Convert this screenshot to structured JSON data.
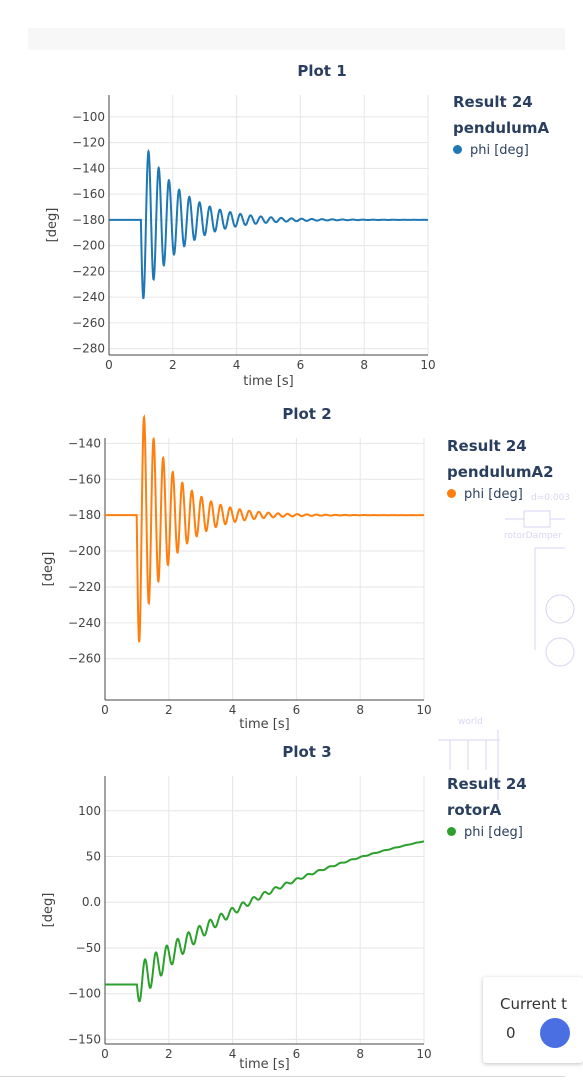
{
  "chart_data": [
    {
      "type": "line",
      "title": "Plot 1",
      "xlabel": "time [s]",
      "ylabel": "[deg]",
      "xlim": [
        0,
        10
      ],
      "ylim": [
        -285,
        -83
      ],
      "x_ticks": [
        "0",
        "2",
        "4",
        "6",
        "8",
        "10"
      ],
      "y_ticks": [
        "−100",
        "−120",
        "−140",
        "−160",
        "−180",
        "−200",
        "−220",
        "−240",
        "−260",
        "−280"
      ],
      "y_tick_values": [
        -100,
        -120,
        -140,
        -160,
        -180,
        -200,
        -220,
        -240,
        -260,
        -280
      ],
      "series": [
        {
          "name": "phi [deg]",
          "color": "#1f77b4",
          "model": {
            "t0": 1.0,
            "base": -180,
            "amp": 65,
            "decay": 0.85,
            "period": 0.32,
            "sign": -1,
            "drift": false
          }
        }
      ],
      "legend": {
        "result": "Result 24",
        "model": "pendulumA",
        "entry": "phi [deg]"
      }
    },
    {
      "type": "line",
      "title": "Plot 2",
      "xlabel": "time [s]",
      "ylabel": "[deg]",
      "xlim": [
        0,
        10
      ],
      "ylim": [
        -283,
        -137
      ],
      "x_ticks": [
        "0",
        "2",
        "4",
        "6",
        "8",
        "10"
      ],
      "y_ticks": [
        "−140",
        "−160",
        "−180",
        "−200",
        "−220",
        "−240",
        "−260"
      ],
      "y_tick_values": [
        -140,
        -160,
        -180,
        -200,
        -220,
        -240,
        -260
      ],
      "series": [
        {
          "name": "phi [deg]",
          "color": "#ff7f0e",
          "model": {
            "t0": 1.0,
            "base": -180,
            "amp": 70,
            "decay": 0.95,
            "period": 0.3,
            "sign": -1,
            "drift": false,
            "spike": true
          }
        }
      ],
      "legend": {
        "result": "Result 24",
        "model": "pendulumA2",
        "entry": "phi [deg]"
      }
    },
    {
      "type": "line",
      "title": "Plot 3",
      "xlabel": "time [s]",
      "ylabel": "[deg]",
      "xlim": [
        0,
        10
      ],
      "ylim": [
        -155,
        138
      ],
      "x_ticks": [
        "0",
        "2",
        "4",
        "6",
        "8",
        "10"
      ],
      "y_ticks": [
        "100",
        "50",
        "0.0",
        "−50",
        "−100",
        "−150"
      ],
      "y_tick_values": [
        100,
        50,
        0,
        -50,
        -100,
        -150
      ],
      "series": [
        {
          "name": "phi [deg]",
          "color": "#2ca02c",
          "model": {
            "t0": 1.0,
            "base": -90,
            "amp": 22,
            "decay": 0.55,
            "period": 0.34,
            "sign": -1,
            "drift": true,
            "target": 110,
            "rate": 0.17
          }
        }
      ],
      "legend": {
        "result": "Result 24",
        "model": "rotorA",
        "entry": "phi [deg]"
      }
    }
  ],
  "background": {
    "labels": {
      "world": "world",
      "rotorDamper": "rotorDamper",
      "d": "d=0.003"
    }
  },
  "control": {
    "label": "Current t",
    "value": "0",
    "accent": "#4a6fe3"
  }
}
